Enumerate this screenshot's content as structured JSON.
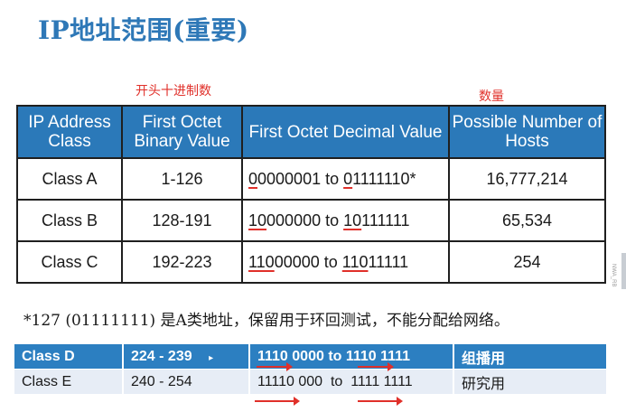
{
  "title": "IP地址范围(重要)",
  "annotations": {
    "decimal_note": "开头十进制数",
    "count_note": "数量"
  },
  "table": {
    "headers": {
      "class": "IP Address Class",
      "binary": "First Octet Binary Value",
      "decimal": "First Octet Decimal Value",
      "hosts": "Possible Number of Hosts"
    },
    "rows": [
      {
        "cls": "Class A",
        "bin": "1-126",
        "dec_p1": "0",
        "dec_p2": "0000001 to ",
        "dec_p3": "0",
        "dec_p4": "1111110*",
        "hosts": "16,777,214"
      },
      {
        "cls": "Class B",
        "bin": "128-191",
        "dec_p1": "10",
        "dec_p2": "000000 to ",
        "dec_p3": "10",
        "dec_p4": "111111",
        "hosts": "65,534"
      },
      {
        "cls": "Class C",
        "bin": "192-223",
        "dec_p1": "110",
        "dec_p2": "00000 to ",
        "dec_p3": "110",
        "dec_p4": "11111",
        "hosts": "254"
      }
    ]
  },
  "note": "*127 (01111111) 是A类地址，保留用于环回测试，不能分配给网络。",
  "bottom": {
    "rows": [
      {
        "cls": "Class D",
        "range": "224 - 239",
        "marker": "▸",
        "binary": "1110 0000 to 1110 1111",
        "use": "组播用"
      },
      {
        "cls": "Class E",
        "range": "240 - 254",
        "binary": "11110 000  to  1111 1111",
        "use": "研究用"
      }
    ]
  },
  "watermark": "NWA_RB",
  "colors": {
    "accent": "#2b79b9",
    "annotation": "#e0302a"
  }
}
